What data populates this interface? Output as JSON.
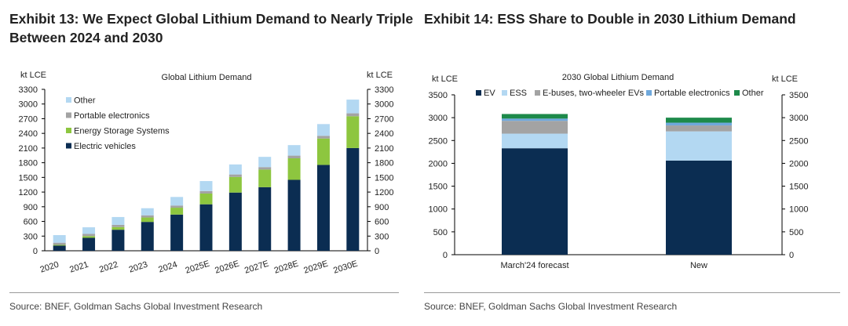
{
  "chart_data": [
    {
      "id": "exhibit13",
      "type": "bar",
      "stacked": true,
      "exhibit_title": [
        "Exhibit 13: We Expect Global Lithium Demand to Nearly Triple",
        "Between 2024 and 2030"
      ],
      "title": "Global Lithium Demand",
      "ylabel_left": "kt LCE",
      "ylabel_right": "kt LCE",
      "ylim": [
        0,
        3300
      ],
      "yticks": [
        0,
        300,
        600,
        900,
        1200,
        1500,
        1800,
        2100,
        2400,
        2700,
        3000,
        3300
      ],
      "categories": [
        "2020",
        "2021",
        "2022",
        "2023",
        "2024",
        "2025E",
        "2026E",
        "2027E",
        "2028E",
        "2029E",
        "2030E"
      ],
      "series": [
        {
          "name": "Electric vehicles",
          "color": "#0b2d52",
          "values": [
            105,
            265,
            430,
            590,
            740,
            950,
            1190,
            1300,
            1450,
            1755,
            2100
          ]
        },
        {
          "name": "Energy Storage Systems",
          "color": "#8dc63f",
          "values": [
            15,
            35,
            55,
            90,
            140,
            220,
            320,
            360,
            440,
            540,
            650
          ]
        },
        {
          "name": "Portable electronics",
          "color": "#a3a3a3",
          "values": [
            45,
            45,
            45,
            45,
            45,
            50,
            50,
            50,
            55,
            55,
            60
          ]
        },
        {
          "name": "Other",
          "color": "#b3d8f2",
          "values": [
            155,
            135,
            160,
            145,
            175,
            205,
            205,
            210,
            215,
            240,
            280
          ]
        }
      ],
      "legend": [
        "Other",
        "Portable electronics",
        "Energy Storage Systems",
        "Electric vehicles"
      ],
      "legend_position": "top-left",
      "source": "Source: BNEF, Goldman Sachs Global Investment Research"
    },
    {
      "id": "exhibit14",
      "type": "bar",
      "stacked": true,
      "exhibit_title": [
        "Exhibit 14: ESS Share to Double in 2030 Lithium Demand"
      ],
      "title": "2030 Global Lithium Demand",
      "ylabel_left": "kt LCE",
      "ylabel_right": "kt LCE",
      "ylim": [
        0,
        3500
      ],
      "yticks": [
        0,
        500,
        1000,
        1500,
        2000,
        2500,
        3000,
        3500
      ],
      "categories": [
        "March'24 forecast",
        "New"
      ],
      "series": [
        {
          "name": "EV",
          "color": "#0b2d52",
          "values": [
            2330,
            2060
          ]
        },
        {
          "name": "ESS",
          "color": "#b3d8f2",
          "values": [
            320,
            640
          ]
        },
        {
          "name": "E-buses, two-wheeler EVs",
          "color": "#a3a3a3",
          "values": [
            280,
            130
          ]
        },
        {
          "name": "Portable electronics",
          "color": "#6fa8dc",
          "values": [
            50,
            60
          ]
        },
        {
          "name": "Other",
          "color": "#1d8a4a",
          "values": [
            100,
            110
          ]
        }
      ],
      "legend": [
        "EV",
        "ESS",
        "E-buses, two-wheeler EVs",
        "Portable electronics",
        "Other"
      ],
      "legend_position": "top",
      "source": "Source: BNEF, Goldman Sachs Global Investment Research"
    }
  ]
}
